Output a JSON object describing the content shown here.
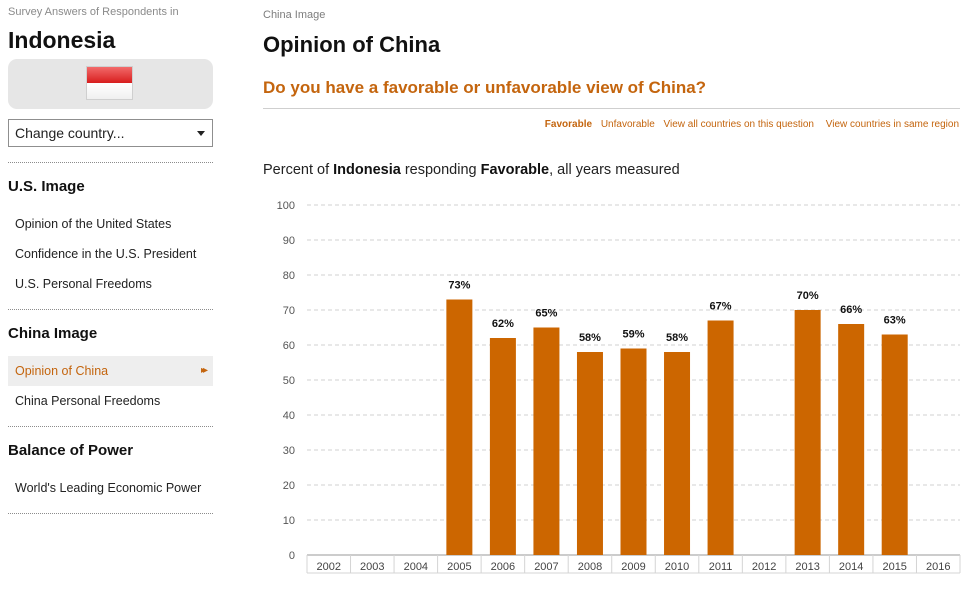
{
  "sidebar": {
    "eyebrow": "Survey Answers of Respondents in",
    "country": "Indonesia",
    "select_label": "Change country...",
    "sections": [
      {
        "title": "U.S. Image",
        "items": [
          "Opinion of the United States",
          "Confidence in the U.S. President",
          "U.S. Personal Freedoms"
        ]
      },
      {
        "title": "China Image",
        "items": [
          "Opinion of China",
          "China Personal Freedoms"
        ]
      },
      {
        "title": "Balance of Power",
        "items": [
          "World's Leading Economic Power"
        ]
      }
    ],
    "active_item": "Opinion of China"
  },
  "main": {
    "breadcrumb": "China Image",
    "title": "Opinion of China",
    "question": "Do you have a favorable or unfavorable view of China?",
    "links": {
      "favorable": "Favorable",
      "unfavorable": "Unfavorable",
      "all_countries": "View all countries on this question",
      "same_region": "View countries in same region"
    },
    "subtitle": {
      "prefix": "Percent of ",
      "country": "Indonesia",
      "mid": " responding ",
      "response": "Favorable",
      "suffix": ", all years measured"
    }
  },
  "colors": {
    "accent": "#c4650e",
    "bar": "#cc6600",
    "gridline": "#d0d0d0"
  },
  "chart_data": {
    "type": "bar",
    "categories": [
      "2002",
      "2003",
      "2004",
      "2005",
      "2006",
      "2007",
      "2008",
      "2009",
      "2010",
      "2011",
      "2012",
      "2013",
      "2014",
      "2015",
      "2016"
    ],
    "values": [
      null,
      null,
      null,
      73,
      62,
      65,
      58,
      59,
      58,
      67,
      null,
      70,
      66,
      63,
      null
    ],
    "labels": [
      "",
      "",
      "",
      "73%",
      "62%",
      "65%",
      "58%",
      "59%",
      "58%",
      "67%",
      "",
      "70%",
      "66%",
      "63%",
      ""
    ],
    "yticks": [
      "0",
      "10",
      "20",
      "30",
      "40",
      "50",
      "60",
      "70",
      "80",
      "90",
      "100"
    ],
    "ylim": [
      0,
      100
    ],
    "grid": true,
    "xlabel": "",
    "ylabel": ""
  }
}
